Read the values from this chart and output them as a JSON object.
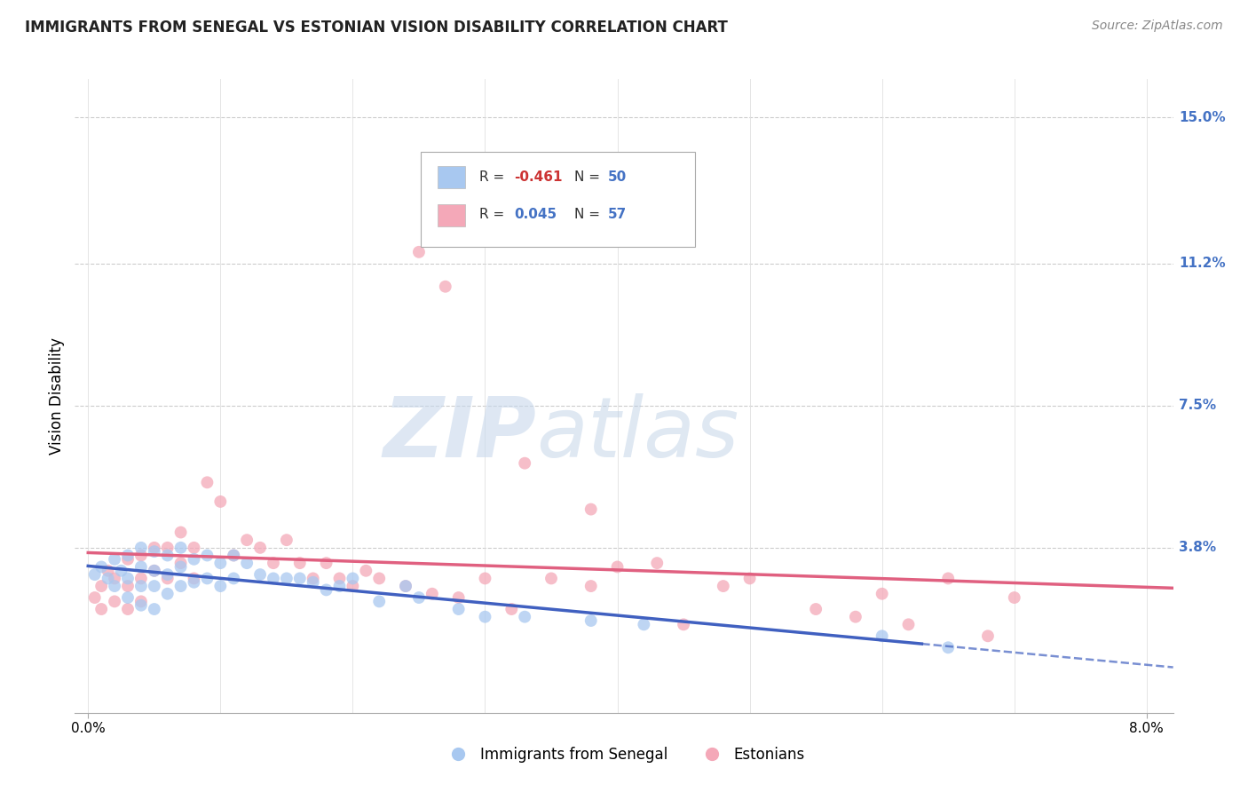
{
  "title": "IMMIGRANTS FROM SENEGAL VS ESTONIAN VISION DISABILITY CORRELATION CHART",
  "source": "Source: ZipAtlas.com",
  "ylabel": "Vision Disability",
  "xlabel_ticks": [
    "0.0%",
    "",
    "",
    "",
    "",
    "",
    "",
    "",
    "8.0%"
  ],
  "xlabel_values": [
    0.0,
    0.01,
    0.02,
    0.03,
    0.04,
    0.05,
    0.06,
    0.07,
    0.08
  ],
  "xlabel_show": [
    0.0,
    0.08
  ],
  "ylabel_ticks": [
    "15.0%",
    "11.2%",
    "7.5%",
    "3.8%"
  ],
  "ylabel_values": [
    0.15,
    0.112,
    0.075,
    0.038
  ],
  "xlim": [
    -0.001,
    0.082
  ],
  "ylim": [
    -0.005,
    0.16
  ],
  "blue_color": "#a8c8f0",
  "pink_color": "#f4a8b8",
  "blue_line_color": "#4060c0",
  "pink_line_color": "#e06080",
  "watermark_zip": "ZIP",
  "watermark_atlas": "atlas",
  "blue_scatter_x": [
    0.0005,
    0.001,
    0.0015,
    0.002,
    0.002,
    0.0025,
    0.003,
    0.003,
    0.003,
    0.004,
    0.004,
    0.004,
    0.004,
    0.005,
    0.005,
    0.005,
    0.005,
    0.006,
    0.006,
    0.006,
    0.007,
    0.007,
    0.007,
    0.008,
    0.008,
    0.009,
    0.009,
    0.01,
    0.01,
    0.011,
    0.011,
    0.012,
    0.013,
    0.014,
    0.015,
    0.016,
    0.017,
    0.018,
    0.019,
    0.02,
    0.022,
    0.024,
    0.025,
    0.028,
    0.03,
    0.033,
    0.038,
    0.042,
    0.06,
    0.065
  ],
  "blue_scatter_y": [
    0.031,
    0.033,
    0.03,
    0.035,
    0.028,
    0.032,
    0.036,
    0.03,
    0.025,
    0.038,
    0.033,
    0.028,
    0.023,
    0.037,
    0.032,
    0.028,
    0.022,
    0.036,
    0.031,
    0.026,
    0.038,
    0.033,
    0.028,
    0.035,
    0.029,
    0.036,
    0.03,
    0.034,
    0.028,
    0.036,
    0.03,
    0.034,
    0.031,
    0.03,
    0.03,
    0.03,
    0.029,
    0.027,
    0.028,
    0.03,
    0.024,
    0.028,
    0.025,
    0.022,
    0.02,
    0.02,
    0.019,
    0.018,
    0.015,
    0.012
  ],
  "pink_scatter_x": [
    0.0005,
    0.001,
    0.001,
    0.0015,
    0.002,
    0.002,
    0.003,
    0.003,
    0.003,
    0.004,
    0.004,
    0.004,
    0.005,
    0.005,
    0.006,
    0.006,
    0.007,
    0.007,
    0.008,
    0.008,
    0.009,
    0.01,
    0.011,
    0.012,
    0.013,
    0.014,
    0.015,
    0.016,
    0.017,
    0.018,
    0.019,
    0.02,
    0.021,
    0.022,
    0.024,
    0.026,
    0.028,
    0.03,
    0.032,
    0.035,
    0.038,
    0.04,
    0.043,
    0.045,
    0.048,
    0.05,
    0.055,
    0.058,
    0.06,
    0.062,
    0.065,
    0.068,
    0.07,
    0.025,
    0.027,
    0.033,
    0.038
  ],
  "pink_scatter_y": [
    0.025,
    0.028,
    0.022,
    0.032,
    0.03,
    0.024,
    0.035,
    0.028,
    0.022,
    0.036,
    0.03,
    0.024,
    0.038,
    0.032,
    0.038,
    0.03,
    0.042,
    0.034,
    0.038,
    0.03,
    0.055,
    0.05,
    0.036,
    0.04,
    0.038,
    0.034,
    0.04,
    0.034,
    0.03,
    0.034,
    0.03,
    0.028,
    0.032,
    0.03,
    0.028,
    0.026,
    0.025,
    0.03,
    0.022,
    0.03,
    0.028,
    0.033,
    0.034,
    0.018,
    0.028,
    0.03,
    0.022,
    0.02,
    0.026,
    0.018,
    0.03,
    0.015,
    0.025,
    0.115,
    0.106,
    0.06,
    0.048
  ]
}
